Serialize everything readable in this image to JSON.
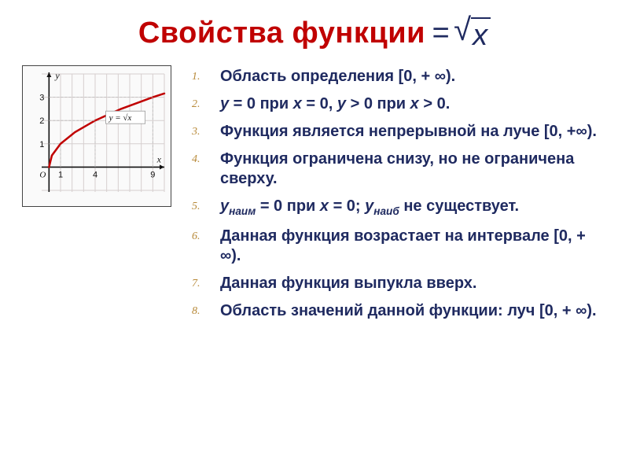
{
  "title": {
    "text": "Свойства функции",
    "formula_lhs": "=",
    "formula_arg": "x"
  },
  "chart": {
    "type": "line",
    "curve_label": "y = √x",
    "x_axis_label": "x",
    "y_axis_label": "y",
    "xlim": [
      0,
      10
    ],
    "ylim": [
      -1,
      4
    ],
    "x_ticks": [
      1,
      4,
      9
    ],
    "y_ticks": [
      1,
      2,
      3
    ],
    "origin_label": "O",
    "grid_color": "#d6cfcf",
    "bg_color": "#fafafa",
    "axis_color": "#111111",
    "curve_color": "#c00000",
    "curve_width": 2.5,
    "curve_points": [
      [
        0,
        0
      ],
      [
        0.25,
        0.5
      ],
      [
        1,
        1
      ],
      [
        2.25,
        1.5
      ],
      [
        4,
        2
      ],
      [
        6.25,
        2.5
      ],
      [
        9,
        3
      ],
      [
        10,
        3.16
      ]
    ],
    "tick_fontsize": 11,
    "label_fontsize": 12
  },
  "properties": [
    {
      "html": "Область определения [0, + ∞)."
    },
    {
      "html": "<span class='it'>y</span> = 0 при <span class='it'>x</span> = 0, <span class='it'>y</span> &gt; 0 при <span class='it'>x</span> &gt; 0."
    },
    {
      "html": "Функция является непрерывной на луче [0, +∞)."
    },
    {
      "html": "Функция ограничена снизу, но не ограничена сверху."
    },
    {
      "html": "<span class='it'>y</span><span class='sub'>наим</span> = 0 при <span class='it'>x</span> = 0; <span class='it'>y</span><span class='sub'>наиб</span> не существует."
    },
    {
      "html": "Данная функция возрастает на интервале [0, + ∞)."
    },
    {
      "html": "Данная функция выпукла вверх."
    },
    {
      "html": "Область значений данной функции: луч [0, + ∞)."
    }
  ],
  "colors": {
    "title_color": "#c00000",
    "text_color": "#1f2a60",
    "list_number_color": "#b88a3a"
  }
}
